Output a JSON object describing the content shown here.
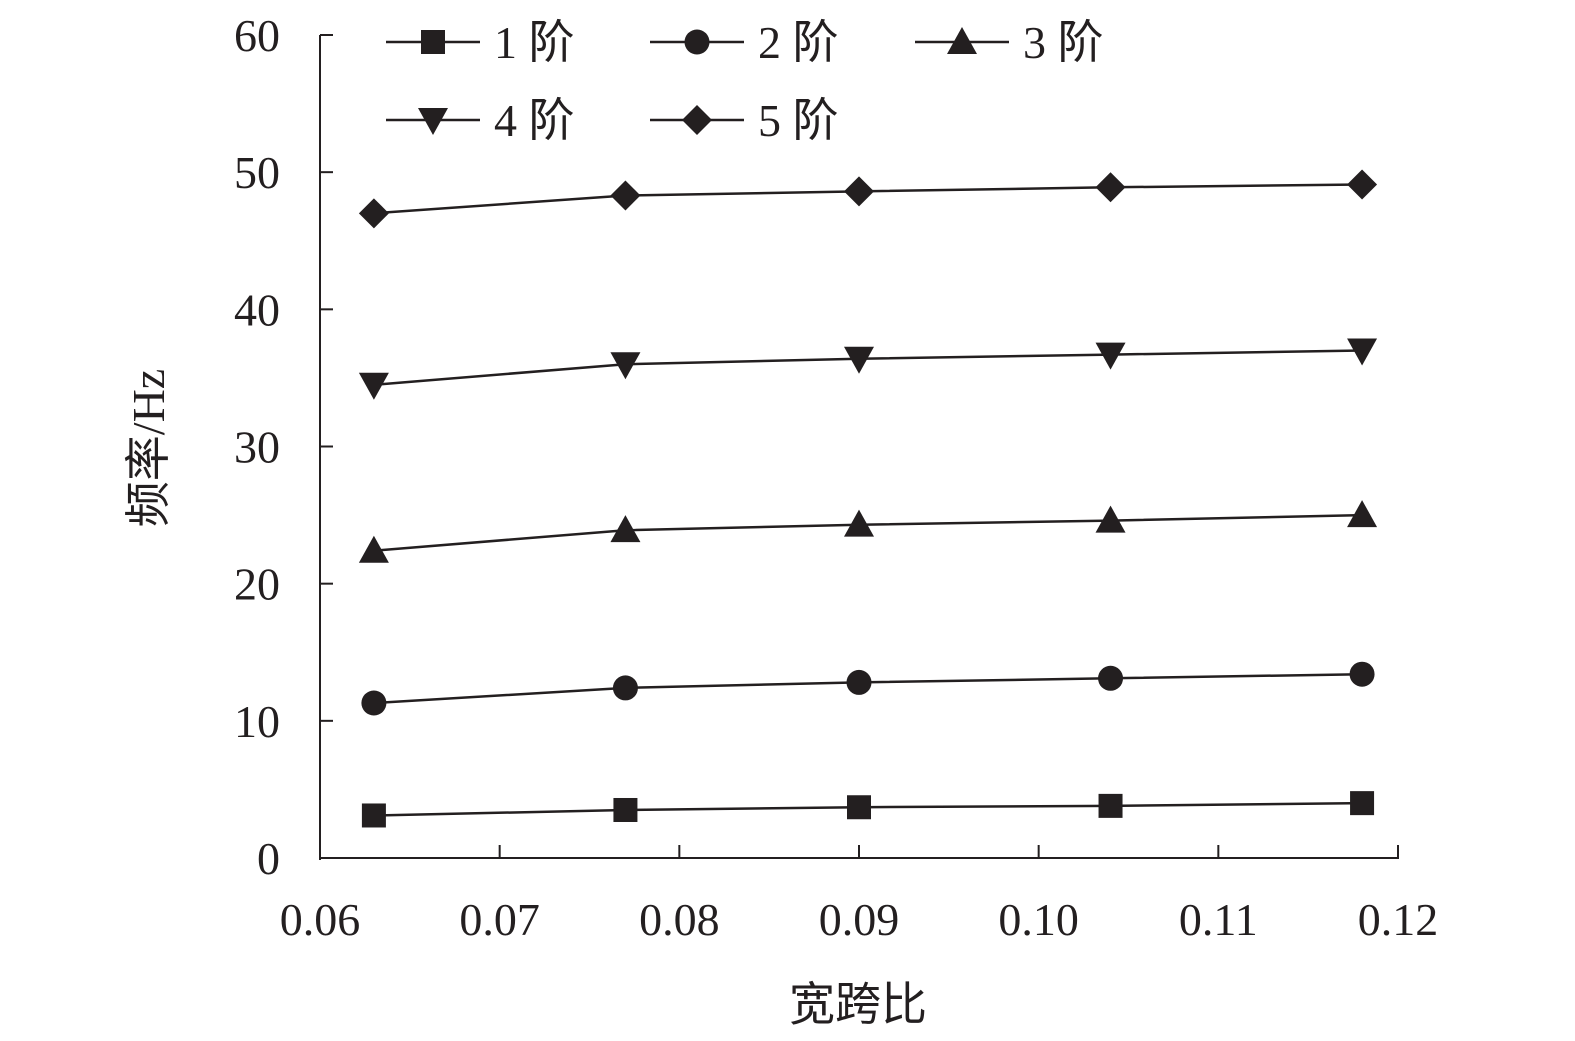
{
  "chart_data": {
    "type": "line",
    "title": "",
    "xlabel": "宽跨比",
    "ylabel": "频率/Hz",
    "xlim": [
      0.06,
      0.12
    ],
    "ylim": [
      0,
      60
    ],
    "x_ticks": [
      "0.06",
      "0.07",
      "0.08",
      "0.09",
      "0.10",
      "0.11",
      "0.12"
    ],
    "y_ticks": [
      "0",
      "10",
      "20",
      "30",
      "40",
      "50",
      "60"
    ],
    "grid": false,
    "legend_position": "top-left",
    "x": [
      0.063,
      0.077,
      0.09,
      0.104,
      0.118
    ],
    "series": [
      {
        "name": "1 阶",
        "marker": "square",
        "values": [
          3.1,
          3.5,
          3.7,
          3.8,
          4.0
        ]
      },
      {
        "name": "2 阶",
        "marker": "circle",
        "values": [
          11.3,
          12.4,
          12.8,
          13.1,
          13.4
        ]
      },
      {
        "name": "3 阶",
        "marker": "triangle-up",
        "values": [
          22.4,
          23.9,
          24.3,
          24.6,
          25.0
        ]
      },
      {
        "name": "4 阶",
        "marker": "triangle-down",
        "values": [
          34.5,
          36.0,
          36.4,
          36.7,
          37.0
        ]
      },
      {
        "name": "5 阶",
        "marker": "diamond",
        "values": [
          47.0,
          48.3,
          48.6,
          48.9,
          49.1
        ]
      }
    ],
    "colors": {
      "line": "#231f20",
      "marker": "#231f20",
      "axis": "#231f20"
    }
  }
}
